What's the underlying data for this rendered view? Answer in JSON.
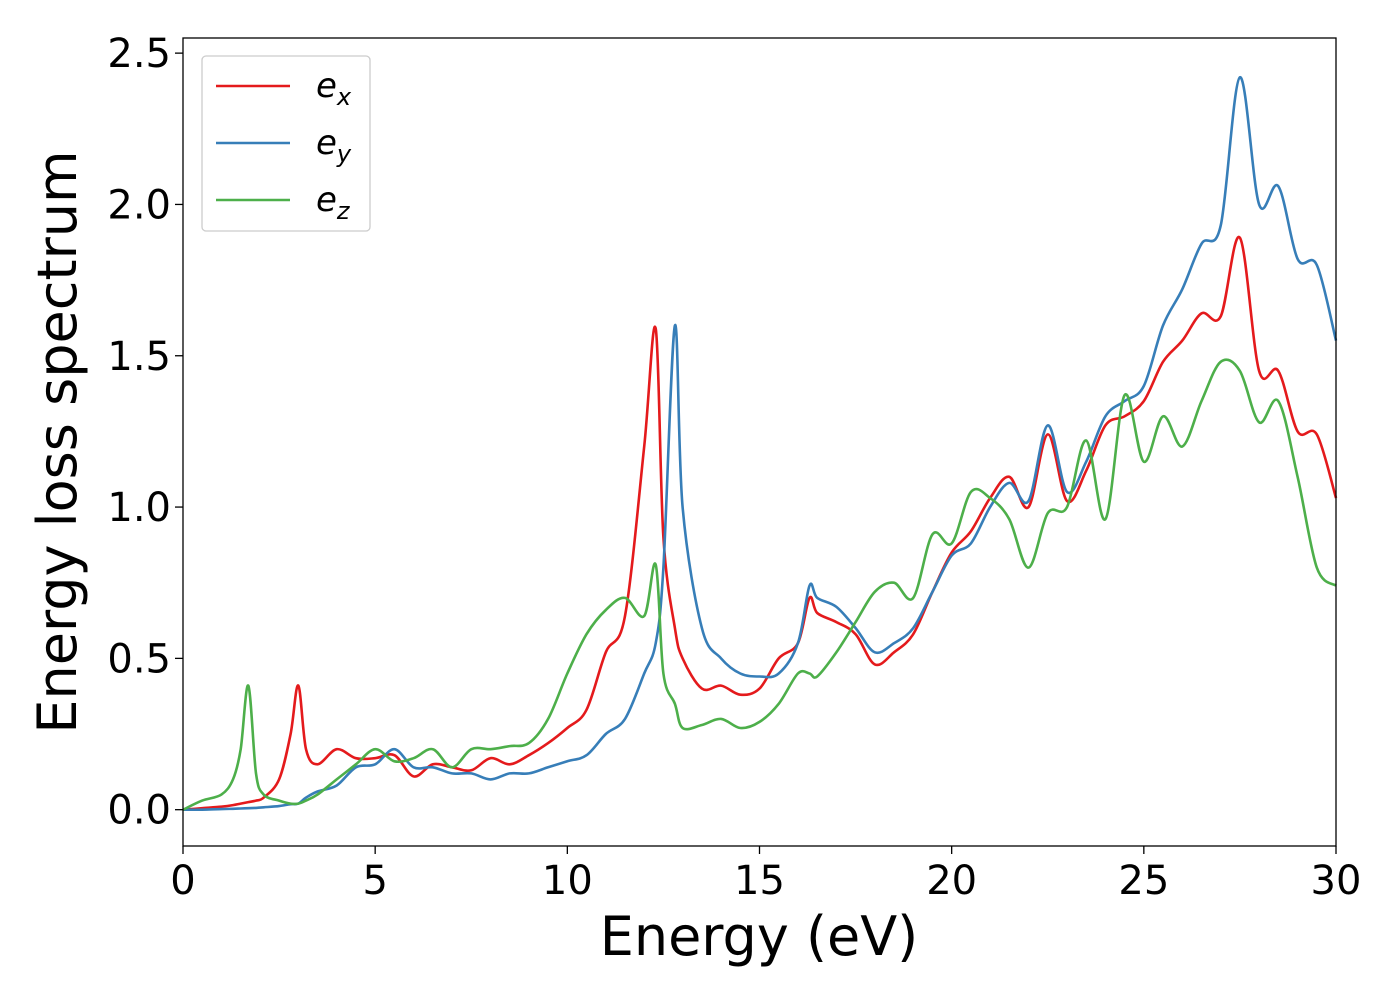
{
  "chart_data": {
    "type": "line",
    "title": "",
    "xlabel": "Energy (eV)",
    "ylabel": "Energy loss spectrum",
    "xlim": [
      0,
      30
    ],
    "ylim": [
      -0.12,
      2.55
    ],
    "xticks": [
      "0",
      "5",
      "10",
      "15",
      "20",
      "25",
      "30"
    ],
    "yticks": [
      "0.0",
      "0.5",
      "1.0",
      "1.5",
      "2.0",
      "2.5"
    ],
    "grid": false,
    "legend_position": "top-left",
    "x": [
      0,
      0.5,
      1,
      1.3,
      1.5,
      1.7,
      1.9,
      2.1,
      2.5,
      2.8,
      3,
      3.2,
      3.5,
      4,
      4.5,
      5,
      5.5,
      6,
      6.5,
      7,
      7.5,
      8,
      8.5,
      9,
      9.5,
      10,
      10.5,
      11,
      11.5,
      12,
      12.3,
      12.5,
      12.8,
      13,
      13.5,
      14,
      14.5,
      15,
      15.5,
      16,
      16.3,
      16.5,
      17,
      17.5,
      18,
      18.5,
      19,
      19.5,
      20,
      20.5,
      21,
      21.5,
      22,
      22.5,
      23,
      23.5,
      24,
      24.5,
      25,
      25.5,
      26,
      26.5,
      27,
      27.5,
      28,
      28.5,
      29,
      29.5,
      30
    ],
    "series": [
      {
        "name": "e_x",
        "label_main": "e",
        "label_sub": "x",
        "color": "#e41a1c",
        "values": [
          0.0,
          0.005,
          0.01,
          0.015,
          0.02,
          0.025,
          0.03,
          0.04,
          0.1,
          0.25,
          0.41,
          0.2,
          0.15,
          0.2,
          0.17,
          0.17,
          0.18,
          0.11,
          0.15,
          0.14,
          0.13,
          0.17,
          0.15,
          0.18,
          0.22,
          0.27,
          0.33,
          0.52,
          0.64,
          1.2,
          1.59,
          0.9,
          0.6,
          0.5,
          0.4,
          0.41,
          0.38,
          0.4,
          0.5,
          0.55,
          0.7,
          0.65,
          0.62,
          0.58,
          0.48,
          0.52,
          0.58,
          0.72,
          0.85,
          0.92,
          1.03,
          1.1,
          1.0,
          1.24,
          1.02,
          1.12,
          1.27,
          1.3,
          1.35,
          1.48,
          1.55,
          1.64,
          1.63,
          1.89,
          1.45,
          1.45,
          1.25,
          1.24,
          1.03
        ]
      },
      {
        "name": "e_y",
        "label_main": "e",
        "label_sub": "y",
        "color": "#377eb8",
        "values": [
          0.0,
          0.0,
          0.002,
          0.003,
          0.004,
          0.005,
          0.006,
          0.008,
          0.012,
          0.018,
          0.02,
          0.04,
          0.06,
          0.08,
          0.14,
          0.15,
          0.2,
          0.14,
          0.14,
          0.12,
          0.12,
          0.1,
          0.12,
          0.12,
          0.14,
          0.16,
          0.18,
          0.25,
          0.3,
          0.45,
          0.55,
          0.8,
          1.6,
          1.0,
          0.6,
          0.5,
          0.45,
          0.44,
          0.45,
          0.55,
          0.74,
          0.7,
          0.67,
          0.6,
          0.52,
          0.55,
          0.6,
          0.72,
          0.84,
          0.88,
          1.0,
          1.08,
          1.02,
          1.27,
          1.05,
          1.15,
          1.3,
          1.35,
          1.4,
          1.6,
          1.72,
          1.87,
          1.93,
          2.42,
          2.0,
          2.06,
          1.82,
          1.8,
          1.55
        ]
      },
      {
        "name": "e_z",
        "label_main": "e",
        "label_sub": "z",
        "color": "#4daf4a",
        "values": [
          0.0,
          0.03,
          0.05,
          0.1,
          0.2,
          0.41,
          0.12,
          0.05,
          0.03,
          0.02,
          0.02,
          0.03,
          0.05,
          0.1,
          0.15,
          0.2,
          0.16,
          0.17,
          0.2,
          0.14,
          0.2,
          0.2,
          0.21,
          0.22,
          0.3,
          0.45,
          0.58,
          0.66,
          0.7,
          0.64,
          0.81,
          0.45,
          0.35,
          0.27,
          0.28,
          0.3,
          0.27,
          0.29,
          0.35,
          0.45,
          0.45,
          0.44,
          0.52,
          0.62,
          0.72,
          0.75,
          0.7,
          0.91,
          0.88,
          1.05,
          1.03,
          0.96,
          0.8,
          0.98,
          1.0,
          1.22,
          0.96,
          1.37,
          1.15,
          1.3,
          1.2,
          1.35,
          1.48,
          1.45,
          1.28,
          1.35,
          1.1,
          0.8,
          0.74
        ]
      }
    ]
  }
}
